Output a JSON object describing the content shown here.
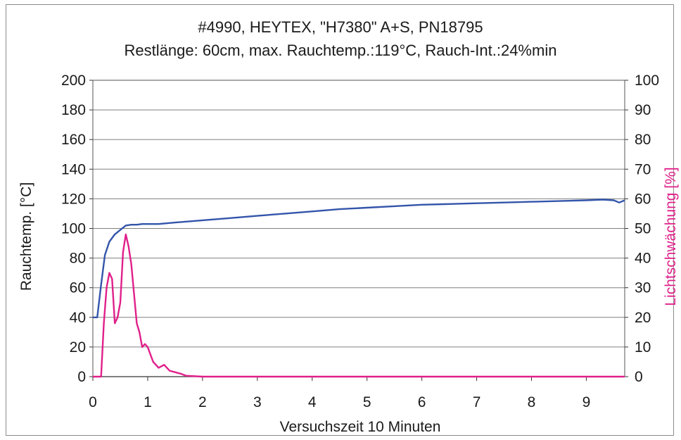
{
  "chart_data": {
    "type": "line",
    "title": "#4990, HEYTEX, \"H7380\" A+S, PN18795",
    "subtitle": "Restlänge: 60cm, max. Rauchtemp.:119°C, Rauch-Int.:24%min",
    "xlabel": "Versuchszeit 10 Minuten",
    "ylabel_left": "Rauchtemp. [°C]",
    "ylabel_right": "Lichtschwächung [%]",
    "xlim": [
      0,
      9.7
    ],
    "ylim_left": [
      0,
      200
    ],
    "ylim_right": [
      0,
      100
    ],
    "x_ticks": [
      0,
      1,
      2,
      3,
      4,
      5,
      6,
      7,
      8,
      9
    ],
    "y_ticks_left": [
      0,
      20,
      40,
      60,
      80,
      100,
      120,
      140,
      160,
      180,
      200
    ],
    "y_ticks_right": [
      0,
      10,
      20,
      30,
      40,
      50,
      60,
      70,
      80,
      90,
      100
    ],
    "grid": true,
    "legend": "none",
    "colors": {
      "temperature": "#3355aa",
      "light_attenuation": "#e0208a",
      "grid": "#808080"
    },
    "series": [
      {
        "axis": "left",
        "color": "#3355aa",
        "x": [
          0,
          0.08,
          0.15,
          0.22,
          0.3,
          0.4,
          0.5,
          0.6,
          0.7,
          0.8,
          0.9,
          1.0,
          1.2,
          1.5,
          2.0,
          2.5,
          3.0,
          3.5,
          4.0,
          4.5,
          5.0,
          5.5,
          6.0,
          6.5,
          7.0,
          7.5,
          8.0,
          8.5,
          9.0,
          9.3,
          9.5,
          9.6,
          9.7
        ],
        "y": [
          40,
          40,
          62,
          82,
          91,
          96,
          99,
          102,
          102.5,
          102.5,
          103,
          103,
          103,
          104,
          105.5,
          107,
          108.5,
          110,
          111.5,
          113,
          114,
          115,
          116,
          116.5,
          117,
          117.5,
          118,
          118.5,
          119,
          119.5,
          119,
          117.5,
          119
        ]
      },
      {
        "axis": "right",
        "color": "#e0208a",
        "x": [
          0,
          0.15,
          0.2,
          0.25,
          0.3,
          0.35,
          0.4,
          0.45,
          0.5,
          0.55,
          0.6,
          0.65,
          0.7,
          0.75,
          0.8,
          0.85,
          0.9,
          0.95,
          1.0,
          1.1,
          1.2,
          1.3,
          1.4,
          1.5,
          1.6,
          1.7,
          2.0,
          3.0,
          4.0,
          5.0,
          6.0,
          7.0,
          8.0,
          9.0,
          9.7
        ],
        "y": [
          0,
          0,
          18,
          30,
          35,
          33,
          18,
          20,
          25,
          42,
          48,
          44,
          38,
          28,
          18,
          15,
          10,
          11,
          10,
          5,
          3,
          4,
          2,
          1.5,
          1,
          0.3,
          0,
          0,
          0,
          0,
          0,
          0,
          0,
          0,
          0
        ]
      }
    ]
  }
}
